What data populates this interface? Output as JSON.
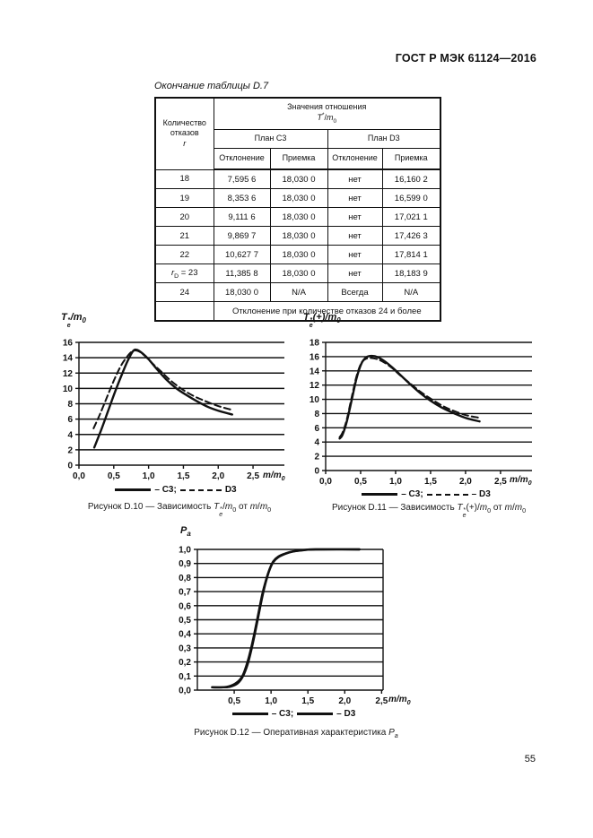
{
  "page": {
    "header_title": "ГОСТ Р МЭК 61124—2016",
    "page_number": "55"
  },
  "table": {
    "caption": "Окончание таблицы D.7",
    "columns": {
      "failures_line1": "Количество",
      "failures_line2": "отказов",
      "failures_symbol_html": "<i>r</i>",
      "ratio_title": "Значения отношения",
      "ratio_math_html": "<i>T</i><sup>*</sup>/<i>m</i><sub>0</sub>",
      "plan_c3": "План C3",
      "plan_d3": "План D3",
      "rejection": "Отклонение",
      "acceptance": "Приемка"
    },
    "rows": [
      {
        "r_html": "18",
        "c3_rej": "7,595 6",
        "c3_acc": "18,030 0",
        "d3_rej": "нет",
        "d3_acc": "16,160 2"
      },
      {
        "r_html": "19",
        "c3_rej": "8,353 6",
        "c3_acc": "18,030 0",
        "d3_rej": "нет",
        "d3_acc": "16,599 0"
      },
      {
        "r_html": "20",
        "c3_rej": "9,111 6",
        "c3_acc": "18,030 0",
        "d3_rej": "нет",
        "d3_acc": "17,021 1"
      },
      {
        "r_html": "21",
        "c3_rej": "9,869 7",
        "c3_acc": "18,030 0",
        "d3_rej": "нет",
        "d3_acc": "17,426 3"
      },
      {
        "r_html": "22",
        "c3_rej": "10,627 7",
        "c3_acc": "18,030 0",
        "d3_rej": "нет",
        "d3_acc": "17,814 1"
      },
      {
        "r_html": "<i>r</i><sub>D</sub> = 23",
        "c3_rej": "11,385 8",
        "c3_acc": "18,030 0",
        "d3_rej": "нет",
        "d3_acc": "18,183 9"
      },
      {
        "r_html": "24",
        "c3_rej": "18,030 0",
        "c3_acc": "N/A",
        "d3_rej": "Всегда",
        "d3_acc": "N/A"
      }
    ],
    "footer_note": "Отклонение при количестве отказов 24 и более"
  },
  "chart_data": [
    {
      "figure": "D.10",
      "type": "line",
      "title_html": "<i>T</i><span class='ss'><span>*</span><span>e</span></span>/<i>m</i><sub>0</sub>",
      "xlabel_html": "<i>m</i>/<i>m</i><sub>0</sub>",
      "caption_html": "Рисунок D.10 — Зависимость <i>T</i><span class='ss'><span>*</span><span>e</span></span>/<i>m</i><sub>0</sub> от <i>m</i>/<i>m</i><sub>0</sub>",
      "ylim": [
        0,
        16
      ],
      "yticks": [
        0,
        2,
        4,
        6,
        8,
        10,
        12,
        14,
        16
      ],
      "ytick_labels": [
        "0",
        "2",
        "4",
        "6",
        "8",
        "10",
        "12",
        "14",
        "16"
      ],
      "xticks": [
        0,
        0.5,
        1.0,
        1.5,
        2.0,
        2.5
      ],
      "xtick_labels": [
        "0,0",
        "0,5",
        "1,0",
        "1,5",
        "2,0",
        "2,5"
      ],
      "xmax_grid": 2.95,
      "right_border": false,
      "grid": true,
      "legend_position": "bottom",
      "legend": [
        {
          "label": "– C3;",
          "dashed": false
        },
        {
          "label": "D3",
          "dashed": true
        }
      ],
      "series": [
        {
          "name": "C3",
          "dashed": false,
          "points": [
            [
              0.22,
              2.3
            ],
            [
              0.32,
              4.6
            ],
            [
              0.42,
              7.1
            ],
            [
              0.52,
              9.6
            ],
            [
              0.62,
              11.9
            ],
            [
              0.7,
              13.6
            ],
            [
              0.78,
              14.9
            ],
            [
              0.84,
              15.0
            ],
            [
              0.92,
              14.5
            ],
            [
              1.0,
              13.8
            ],
            [
              1.12,
              12.5
            ],
            [
              1.25,
              11.2
            ],
            [
              1.4,
              10.0
            ],
            [
              1.55,
              9.1
            ],
            [
              1.7,
              8.3
            ],
            [
              1.85,
              7.6
            ],
            [
              2.0,
              7.1
            ],
            [
              2.2,
              6.6
            ]
          ]
        },
        {
          "name": "D3",
          "dashed": true,
          "points": [
            [
              0.21,
              4.8
            ],
            [
              0.3,
              6.6
            ],
            [
              0.4,
              8.8
            ],
            [
              0.5,
              11.0
            ],
            [
              0.6,
              12.9
            ],
            [
              0.68,
              14.0
            ],
            [
              0.76,
              14.8
            ],
            [
              0.84,
              14.9
            ],
            [
              0.94,
              14.3
            ],
            [
              1.05,
              13.3
            ],
            [
              1.18,
              12.2
            ],
            [
              1.32,
              11.0
            ],
            [
              1.48,
              9.9
            ],
            [
              1.65,
              9.0
            ],
            [
              1.8,
              8.4
            ],
            [
              2.0,
              7.7
            ],
            [
              2.2,
              7.2
            ]
          ]
        }
      ]
    },
    {
      "figure": "D.11",
      "type": "line",
      "title_html": "<i>T</i><span class='ss'><span>*</span><span>e</span></span>(+)/<i>m</i><sub>0</sub>",
      "xlabel_html": "<i>m</i>/<i>m</i><sub>0</sub>",
      "caption_html": "Рисунок D.11 — Зависимость <i>T</i><span class='ss'><span>*</span><span>e</span></span>(+)/<i>m</i><sub>0</sub> от <i>m</i>/<i>m</i><sub>0</sub>",
      "ylim": [
        0,
        18
      ],
      "yticks": [
        0,
        2,
        4,
        6,
        8,
        10,
        12,
        14,
        16,
        18
      ],
      "ytick_labels": [
        "0",
        "2",
        "4",
        "6",
        "8",
        "10",
        "12",
        "14",
        "16",
        "18"
      ],
      "xticks": [
        0,
        0.5,
        1.0,
        1.5,
        2.0,
        2.5
      ],
      "xtick_labels": [
        "0,0",
        "0,5",
        "1,0",
        "1,5",
        "2,0",
        "2,5"
      ],
      "xmax_grid": 2.95,
      "right_border": false,
      "grid": true,
      "legend_position": "bottom",
      "legend": [
        {
          "label": "– C3;",
          "dashed": false
        },
        {
          "label": "– D3",
          "dashed": true
        }
      ],
      "series": [
        {
          "name": "C3",
          "dashed": false,
          "points": [
            [
              0.2,
              4.5
            ],
            [
              0.24,
              5.0
            ],
            [
              0.3,
              6.8
            ],
            [
              0.37,
              9.8
            ],
            [
              0.44,
              12.9
            ],
            [
              0.51,
              15.0
            ],
            [
              0.58,
              15.9
            ],
            [
              0.66,
              16.1
            ],
            [
              0.75,
              15.9
            ],
            [
              0.85,
              15.3
            ],
            [
              0.95,
              14.5
            ],
            [
              1.05,
              13.6
            ],
            [
              1.2,
              12.2
            ],
            [
              1.35,
              10.9
            ],
            [
              1.5,
              9.8
            ],
            [
              1.65,
              8.9
            ],
            [
              1.8,
              8.2
            ],
            [
              2.0,
              7.4
            ],
            [
              2.2,
              6.9
            ]
          ]
        },
        {
          "name": "D3",
          "dashed": true,
          "points": [
            [
              0.2,
              4.7
            ],
            [
              0.24,
              5.3
            ],
            [
              0.3,
              7.1
            ],
            [
              0.37,
              10.2
            ],
            [
              0.44,
              13.2
            ],
            [
              0.51,
              15.1
            ],
            [
              0.58,
              15.7
            ],
            [
              0.66,
              15.8
            ],
            [
              0.75,
              15.6
            ],
            [
              0.85,
              15.1
            ],
            [
              0.95,
              14.4
            ],
            [
              1.05,
              13.5
            ],
            [
              1.2,
              12.3
            ],
            [
              1.35,
              11.1
            ],
            [
              1.5,
              10.1
            ],
            [
              1.65,
              9.2
            ],
            [
              1.8,
              8.5
            ],
            [
              2.0,
              7.8
            ],
            [
              2.2,
              7.4
            ]
          ]
        }
      ]
    },
    {
      "figure": "D.12",
      "type": "line",
      "title_html": "<i>P</i><sub>a</sub>",
      "xlabel_html": "<i>m</i>/<i>m</i><sub>0</sub>",
      "caption_html": "Рисунок D.12 — Оперативная характеристика <i>P<sub>a</sub></i>",
      "ylim": [
        0,
        1
      ],
      "yticks": [
        0,
        0.1,
        0.2,
        0.3,
        0.4,
        0.5,
        0.6,
        0.7,
        0.8,
        0.9,
        1.0
      ],
      "ytick_labels": [
        "0,0",
        "0,1",
        "0,2",
        "0,3",
        "0,4",
        "0,5",
        "0,6",
        "0,7",
        "0,8",
        "0,9",
        "1,0"
      ],
      "xticks": [
        0.5,
        1.0,
        1.5,
        2.0,
        2.5
      ],
      "xtick_labels": [
        "0,5",
        "1,0",
        "1,5",
        "2,0",
        "2,5"
      ],
      "xmax_grid": 2.52,
      "right_border": true,
      "grid": true,
      "legend_position": "bottom",
      "legend": [
        {
          "label": "– C3;",
          "dashed": false
        },
        {
          "label": "– D3",
          "dashed": false
        }
      ],
      "series": [
        {
          "name": "C3",
          "dashed": false,
          "points": [
            [
              0.2,
              0.02
            ],
            [
              0.35,
              0.02
            ],
            [
              0.45,
              0.025
            ],
            [
              0.55,
              0.05
            ],
            [
              0.62,
              0.1
            ],
            [
              0.68,
              0.18
            ],
            [
              0.73,
              0.28
            ],
            [
              0.78,
              0.4
            ],
            [
              0.83,
              0.53
            ],
            [
              0.88,
              0.66
            ],
            [
              0.93,
              0.77
            ],
            [
              0.98,
              0.855
            ],
            [
              1.03,
              0.91
            ],
            [
              1.1,
              0.945
            ],
            [
              1.2,
              0.97
            ],
            [
              1.3,
              0.985
            ],
            [
              1.45,
              0.995
            ],
            [
              1.6,
              1.0
            ],
            [
              2.2,
              1.0
            ]
          ]
        },
        {
          "name": "D3",
          "dashed": false,
          "points": [
            [
              0.2,
              0.02
            ],
            [
              0.35,
              0.02
            ],
            [
              0.45,
              0.03
            ],
            [
              0.55,
              0.06
            ],
            [
              0.62,
              0.11
            ],
            [
              0.68,
              0.2
            ],
            [
              0.73,
              0.3
            ],
            [
              0.78,
              0.42
            ],
            [
              0.83,
              0.55
            ],
            [
              0.88,
              0.68
            ],
            [
              0.93,
              0.78
            ],
            [
              0.98,
              0.86
            ],
            [
              1.03,
              0.915
            ],
            [
              1.1,
              0.95
            ],
            [
              1.2,
              0.972
            ],
            [
              1.3,
              0.986
            ],
            [
              1.45,
              0.996
            ],
            [
              1.6,
              1.0
            ],
            [
              2.2,
              1.0
            ]
          ]
        }
      ]
    }
  ]
}
